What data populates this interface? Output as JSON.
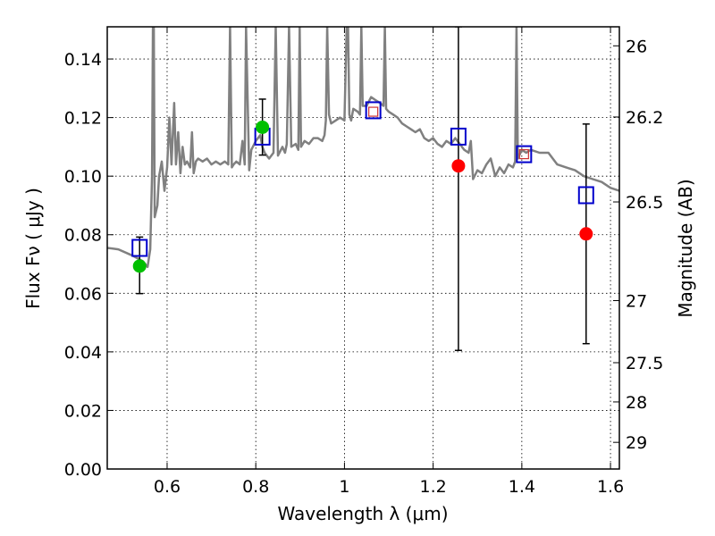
{
  "chart_data": {
    "type": "scatter",
    "xlabel": "Wavelength  λ (μm)",
    "ylabel": "Flux  Fν  ( μJy )",
    "y2label": "Magnitude (AB)",
    "xlim": [
      0.465,
      1.62
    ],
    "ylim": [
      0.0,
      0.151
    ],
    "grid": true,
    "x_ticks": [
      {
        "value": 0.6,
        "label": "0.6"
      },
      {
        "value": 0.8,
        "label": "0.8"
      },
      {
        "value": 1.0,
        "label": "1"
      },
      {
        "value": 1.2,
        "label": "1.2"
      },
      {
        "value": 1.4,
        "label": "1.4"
      },
      {
        "value": 1.6,
        "label": "1.6"
      }
    ],
    "y_ticks": [
      {
        "value": 0.0,
        "label": "0.00"
      },
      {
        "value": 0.02,
        "label": "0.02"
      },
      {
        "value": 0.04,
        "label": "0.04"
      },
      {
        "value": 0.06,
        "label": "0.06"
      },
      {
        "value": 0.08,
        "label": "0.08"
      },
      {
        "value": 0.1,
        "label": "0.10"
      },
      {
        "value": 0.12,
        "label": "0.12"
      },
      {
        "value": 0.14,
        "label": "0.14"
      }
    ],
    "y2_ticks": [
      {
        "flux": 0.1445,
        "label": "26"
      },
      {
        "flux": 0.1202,
        "label": "26.2"
      },
      {
        "flux": 0.0912,
        "label": "26.5"
      },
      {
        "flux": 0.0575,
        "label": "27"
      },
      {
        "flux": 0.0363,
        "label": "27.5"
      },
      {
        "flux": 0.0229,
        "label": "28"
      },
      {
        "flux": 0.0091,
        "label": "29"
      }
    ],
    "spectrum": {
      "color": "#808080",
      "x": [
        0.465,
        0.49,
        0.52,
        0.545,
        0.556,
        0.562,
        0.566,
        0.568,
        0.57,
        0.572,
        0.575,
        0.578,
        0.582,
        0.588,
        0.594,
        0.6,
        0.605,
        0.61,
        0.616,
        0.62,
        0.625,
        0.63,
        0.635,
        0.64,
        0.645,
        0.652,
        0.656,
        0.66,
        0.665,
        0.67,
        0.68,
        0.69,
        0.7,
        0.71,
        0.72,
        0.73,
        0.738,
        0.742,
        0.746,
        0.75,
        0.756,
        0.764,
        0.77,
        0.775,
        0.778,
        0.785,
        0.79,
        0.8,
        0.81,
        0.815,
        0.82,
        0.83,
        0.84,
        0.845,
        0.85,
        0.86,
        0.866,
        0.87,
        0.875,
        0.88,
        0.89,
        0.896,
        0.899,
        0.902,
        0.91,
        0.92,
        0.93,
        0.94,
        0.95,
        0.955,
        0.958,
        0.961,
        0.965,
        0.97,
        0.98,
        0.99,
        1.0,
        1.005,
        1.008,
        1.011,
        1.015,
        1.02,
        1.03,
        1.035,
        1.038,
        1.041,
        1.05,
        1.06,
        1.07,
        1.08,
        1.088,
        1.091,
        1.094,
        1.1,
        1.11,
        1.12,
        1.13,
        1.14,
        1.15,
        1.16,
        1.17,
        1.18,
        1.19,
        1.2,
        1.21,
        1.22,
        1.23,
        1.24,
        1.25,
        1.26,
        1.27,
        1.28,
        1.285,
        1.29,
        1.3,
        1.31,
        1.32,
        1.33,
        1.34,
        1.35,
        1.36,
        1.37,
        1.38,
        1.385,
        1.388,
        1.391,
        1.4,
        1.41,
        1.42,
        1.44,
        1.46,
        1.48,
        1.5,
        1.52,
        1.54,
        1.56,
        1.58,
        1.6,
        1.62
      ],
      "y": [
        0.0755,
        0.075,
        0.073,
        0.071,
        0.069,
        0.075,
        0.1,
        0.151,
        0.151,
        0.086,
        0.088,
        0.09,
        0.1,
        0.105,
        0.095,
        0.103,
        0.12,
        0.104,
        0.125,
        0.104,
        0.115,
        0.101,
        0.11,
        0.104,
        0.105,
        0.103,
        0.115,
        0.101,
        0.105,
        0.106,
        0.105,
        0.106,
        0.104,
        0.105,
        0.104,
        0.105,
        0.104,
        0.151,
        0.103,
        0.104,
        0.105,
        0.104,
        0.112,
        0.104,
        0.151,
        0.102,
        0.109,
        0.112,
        0.114,
        0.11,
        0.108,
        0.106,
        0.108,
        0.151,
        0.107,
        0.11,
        0.108,
        0.111,
        0.151,
        0.11,
        0.111,
        0.109,
        0.151,
        0.11,
        0.112,
        0.111,
        0.113,
        0.113,
        0.112,
        0.114,
        0.119,
        0.151,
        0.121,
        0.118,
        0.119,
        0.12,
        0.119,
        0.151,
        0.151,
        0.121,
        0.119,
        0.123,
        0.122,
        0.121,
        0.151,
        0.124,
        0.124,
        0.127,
        0.126,
        0.125,
        0.124,
        0.151,
        0.123,
        0.122,
        0.121,
        0.12,
        0.118,
        0.117,
        0.116,
        0.115,
        0.116,
        0.113,
        0.112,
        0.113,
        0.111,
        0.11,
        0.112,
        0.111,
        0.113,
        0.111,
        0.109,
        0.108,
        0.112,
        0.099,
        0.102,
        0.101,
        0.104,
        0.106,
        0.1,
        0.103,
        0.101,
        0.104,
        0.103,
        0.105,
        0.151,
        0.106,
        0.109,
        0.108,
        0.109,
        0.108,
        0.108,
        0.104,
        0.103,
        0.102,
        0.1,
        0.099,
        0.098,
        0.096,
        0.095
      ]
    },
    "series": [
      {
        "marker": "open-square",
        "color": "#0000cc",
        "points": [
          {
            "x": 0.538,
            "y": 0.0755
          },
          {
            "x": 0.815,
            "y": 0.1135
          },
          {
            "x": 1.065,
            "y": 0.1225
          },
          {
            "x": 1.257,
            "y": 0.1135
          },
          {
            "x": 1.405,
            "y": 0.1075
          },
          {
            "x": 1.545,
            "y": 0.0935
          }
        ]
      },
      {
        "marker": "filled-circle",
        "color": "#00c000",
        "points": [
          {
            "x": 0.538,
            "y": 0.0693,
            "err_low": 0.0599,
            "err_high": 0.0792
          },
          {
            "x": 0.815,
            "y": 0.1167,
            "err_low": 0.1072,
            "err_high": 0.1263
          }
        ]
      },
      {
        "marker": "filled-circle",
        "color": "#ff0000",
        "points": [
          {
            "x": 1.257,
            "y": 0.1035,
            "err_low": 0.0405,
            "err_high": 0.151
          },
          {
            "x": 1.545,
            "y": 0.0803,
            "err_low": 0.0428,
            "err_high": 0.1178
          }
        ]
      },
      {
        "marker": "small-open-square",
        "color": "#cc3333",
        "points": [
          {
            "x": 1.065,
            "y": 0.122
          },
          {
            "x": 1.405,
            "y": 0.1075
          }
        ]
      }
    ]
  }
}
